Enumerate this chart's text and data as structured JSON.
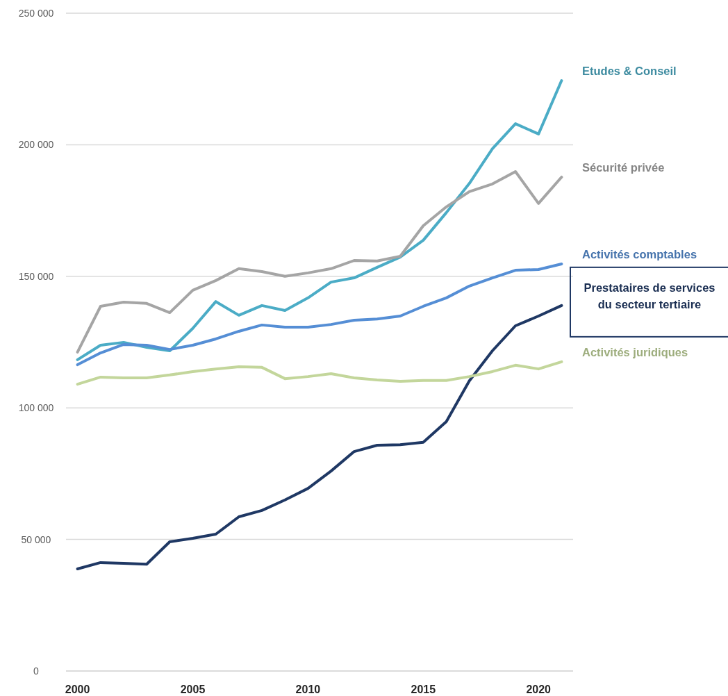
{
  "chart_data": {
    "type": "line",
    "x": [
      2000,
      2001,
      2002,
      2003,
      2004,
      2005,
      2006,
      2007,
      2008,
      2009,
      2010,
      2011,
      2012,
      2013,
      2014,
      2015,
      2016,
      2017,
      2018,
      2019,
      2020,
      2021
    ],
    "xlim": [
      1999.5,
      2021.5
    ],
    "xticks": [
      2000,
      2005,
      2010,
      2015,
      2020
    ],
    "ylim": [
      0,
      250000
    ],
    "yticks": [
      {
        "value": 0,
        "label": "0"
      },
      {
        "value": 50000,
        "label": "50 000"
      },
      {
        "value": 100000,
        "label": "100 000"
      },
      {
        "value": 150000,
        "label": "150 000"
      },
      {
        "value": 200000,
        "label": "200 000"
      },
      {
        "value": 250000,
        "label": "250 000"
      }
    ],
    "grid": "y",
    "line_style": "solid",
    "marker": "none",
    "series": [
      {
        "name": "Etudes & Conseil",
        "color": "#4bacc6",
        "values": [
          118300,
          123800,
          124900,
          123000,
          121700,
          130200,
          140400,
          135200,
          138900,
          137000,
          141800,
          147800,
          149400,
          153400,
          157300,
          163700,
          174200,
          185300,
          198500,
          208000,
          204100,
          224400
        ]
      },
      {
        "name": "Sécurité privée",
        "color": "#a5a5a5",
        "values": [
          121200,
          138600,
          140200,
          139700,
          136200,
          144700,
          148400,
          152900,
          151800,
          150000,
          151300,
          152900,
          156000,
          155800,
          157600,
          169200,
          176400,
          182200,
          185100,
          189800,
          177700,
          187700
        ]
      },
      {
        "name": "Activités comptables",
        "color": "#558ed5",
        "values": [
          116400,
          120900,
          124100,
          123800,
          122200,
          123800,
          126200,
          129100,
          131500,
          130700,
          130700,
          131700,
          133300,
          133800,
          134900,
          138600,
          141800,
          146300,
          149400,
          152300,
          152600,
          154700
        ]
      },
      {
        "name": "Prestataires de services du secteur tertiaire",
        "color": "#1f3864",
        "values": [
          38800,
          41200,
          40900,
          40600,
          49100,
          50400,
          52000,
          58600,
          61000,
          65000,
          69400,
          76000,
          83400,
          85800,
          86000,
          86900,
          94800,
          110300,
          121700,
          131200,
          134900,
          138900
        ]
      },
      {
        "name": "Activités juridiques",
        "color": "#c3d69b",
        "values": [
          109000,
          111700,
          111400,
          111400,
          112500,
          113800,
          114800,
          115600,
          115400,
          111100,
          111900,
          113000,
          111400,
          110600,
          110100,
          110400,
          110400,
          111900,
          113800,
          116200,
          114800,
          117500
        ]
      }
    ]
  }
}
